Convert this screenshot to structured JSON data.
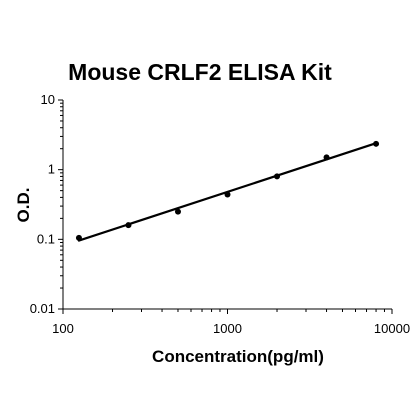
{
  "chart_data": {
    "type": "scatter",
    "title": "Mouse CRLF2 ELISA Kit",
    "xlabel": "Concentration(pg/ml)",
    "ylabel": "O.D.",
    "x_scale": "log",
    "y_scale": "log",
    "xlim": [
      100,
      10000
    ],
    "ylim": [
      0.01,
      10
    ],
    "x_ticks": [
      "100",
      "1000",
      "10000"
    ],
    "y_ticks": [
      "0.01",
      "0.1",
      "1",
      "10"
    ],
    "grid": false,
    "legend": "none",
    "series": [
      {
        "points": [
          {
            "x": 125,
            "y": 0.105
          },
          {
            "x": 250,
            "y": 0.16
          },
          {
            "x": 500,
            "y": 0.25
          },
          {
            "x": 1000,
            "y": 0.44
          },
          {
            "x": 2000,
            "y": 0.8
          },
          {
            "x": 4000,
            "y": 1.5
          },
          {
            "x": 8000,
            "y": 2.35
          }
        ],
        "color": "#000000"
      }
    ],
    "trendline": {
      "type": "power",
      "from": {
        "x": 125,
        "y": 0.096
      },
      "to": {
        "x": 8000,
        "y": 2.4
      },
      "color": "#000000"
    }
  }
}
